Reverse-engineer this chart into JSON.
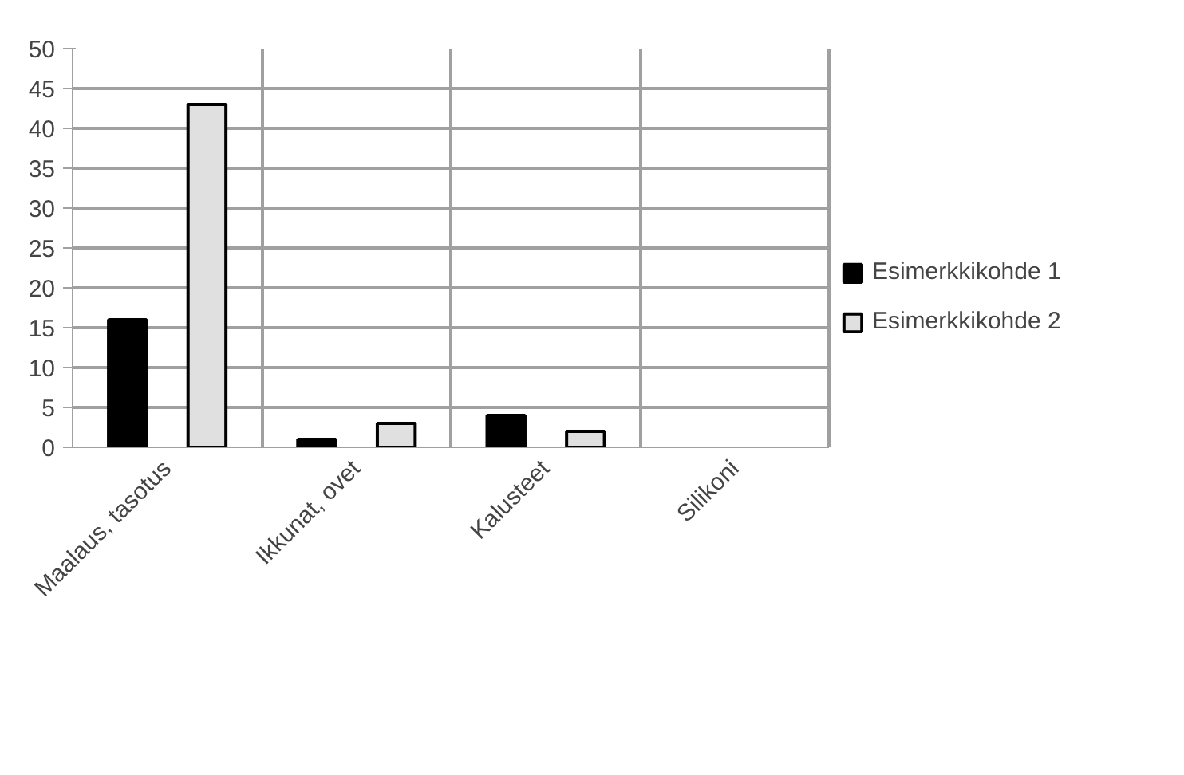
{
  "chart_data": {
    "type": "bar",
    "categories": [
      "Maalaus, tasotus",
      "Ikkunat, ovet",
      "Kalusteet",
      "Silikoni"
    ],
    "series": [
      {
        "name": "Esimerkkikohde 1",
        "color": "#000000",
        "values": [
          16,
          1,
          4,
          0
        ]
      },
      {
        "name": "Esimerkkikohde 2",
        "color": "#e0e0e0",
        "values": [
          43,
          3,
          2,
          0
        ]
      }
    ],
    "ylim": [
      0,
      50
    ],
    "yticks": [
      0,
      5,
      10,
      15,
      20,
      25,
      30,
      35,
      40,
      45,
      50
    ],
    "grid": true,
    "legend": "right"
  }
}
